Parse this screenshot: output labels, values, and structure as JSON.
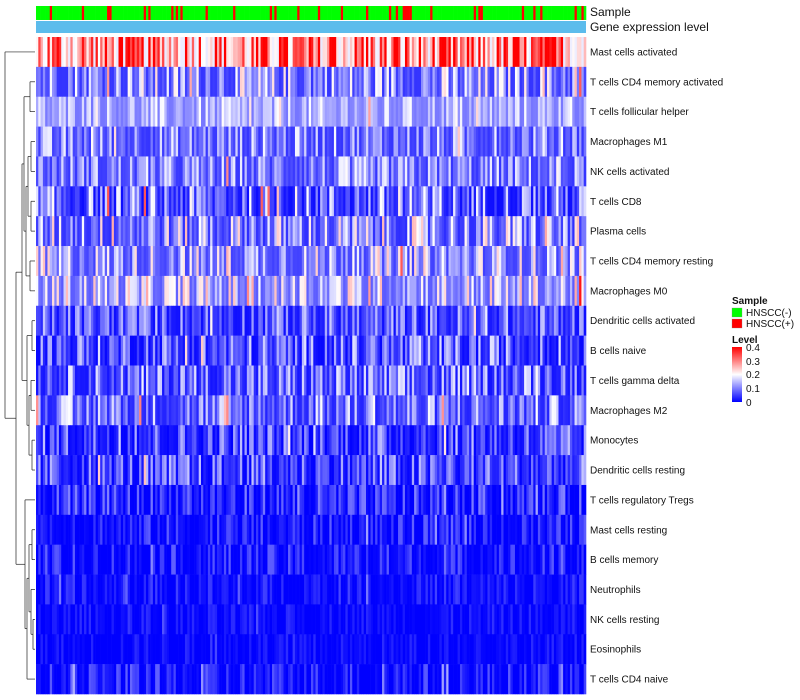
{
  "chart_data": {
    "type": "heatmap",
    "column_annotation_labels": [
      "Sample",
      "Gene expression level"
    ],
    "column_count": 240,
    "rows": [
      {
        "name": "Mast cells activated",
        "mean": 0.26,
        "spread": 0.14
      },
      {
        "name": "T cells CD4 memory activated",
        "mean": 0.09,
        "spread": 0.09
      },
      {
        "name": "T cells follicular helper",
        "mean": 0.12,
        "spread": 0.05
      },
      {
        "name": "Macrophages M1",
        "mean": 0.08,
        "spread": 0.07
      },
      {
        "name": "NK cells activated",
        "mean": 0.08,
        "spread": 0.07
      },
      {
        "name": "T cells CD8",
        "mean": 0.06,
        "spread": 0.09
      },
      {
        "name": "Plasma cells",
        "mean": 0.09,
        "spread": 0.1
      },
      {
        "name": "T cells CD4 memory resting",
        "mean": 0.1,
        "spread": 0.09
      },
      {
        "name": "Macrophages M0",
        "mean": 0.12,
        "spread": 0.09
      },
      {
        "name": "Dendritic cells activated",
        "mean": 0.05,
        "spread": 0.07
      },
      {
        "name": "B cells naive",
        "mean": 0.05,
        "spread": 0.08
      },
      {
        "name": "T cells gamma delta",
        "mean": 0.06,
        "spread": 0.08
      },
      {
        "name": "Macrophages M2",
        "mean": 0.07,
        "spread": 0.08
      },
      {
        "name": "Monocytes",
        "mean": 0.04,
        "spread": 0.07
      },
      {
        "name": "Dendritic cells resting",
        "mean": 0.04,
        "spread": 0.07
      },
      {
        "name": "T cells regulatory  Tregs",
        "mean": 0.02,
        "spread": 0.05
      },
      {
        "name": "Mast cells resting",
        "mean": 0.01,
        "spread": 0.04
      },
      {
        "name": "B cells memory",
        "mean": 0.01,
        "spread": 0.04
      },
      {
        "name": "Neutrophils",
        "mean": 0.005,
        "spread": 0.03
      },
      {
        "name": "NK cells resting",
        "mean": 0.005,
        "spread": 0.02
      },
      {
        "name": "Eosinophils",
        "mean": 0.003,
        "spread": 0.02
      },
      {
        "name": "T cells CD4 naive",
        "mean": 0.01,
        "spread": 0.04
      }
    ],
    "sample_groups": [
      {
        "name": "HNSCC(-)",
        "color": "#00ff00"
      },
      {
        "name": "HNSCC(+)",
        "color": "#ff0000"
      }
    ],
    "sample_group_fraction_positive": 0.18,
    "gene_expression_color": "#5cbcec",
    "color_scale": {
      "title": "Level",
      "min": 0,
      "max": 0.4,
      "ticks": [
        "0.4",
        "0.3",
        "0.2",
        "0.1",
        "0"
      ],
      "colors": [
        "#0000ff",
        "#ffffff",
        "#ff0000"
      ]
    },
    "legend": {
      "sample_title": "Sample",
      "level_title": "Level",
      "placement": "right"
    },
    "dendrogram": "rows"
  }
}
